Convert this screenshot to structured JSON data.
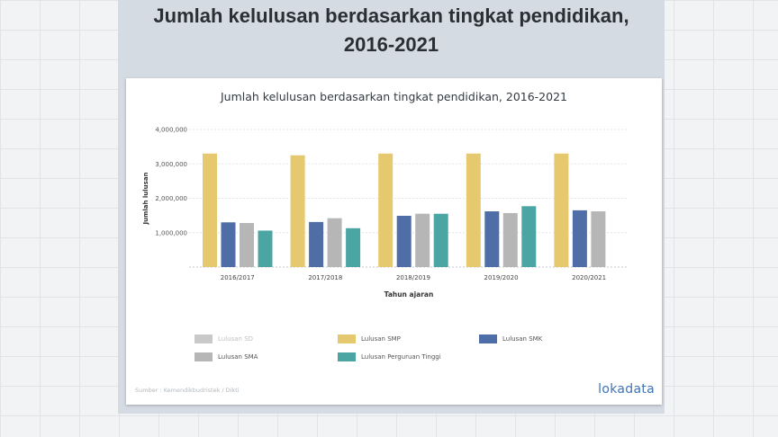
{
  "slide": {
    "title_line1": "Jumlah kelulusan berdasarkan tingkat pendidikan,",
    "title_line2": "2016-2021"
  },
  "chart_data": {
    "type": "bar",
    "title": "Jumlah kelulusan berdasarkan tingkat pendidikan, 2016-2021",
    "xlabel": "Tahun ajaran",
    "ylabel": "Jumlah lulusan",
    "ylim": [
      0,
      4000000
    ],
    "yticks": [
      1000000,
      2000000,
      3000000,
      4000000
    ],
    "ytick_labels": [
      "1,000,000",
      "2,000,000",
      "3,000,000",
      "4,000,000"
    ],
    "grid": "dashed horizontal",
    "legend_position": "bottom",
    "categories": [
      "2016/2017",
      "2017/2018",
      "2018/2019",
      "2019/2020",
      "2020/2021"
    ],
    "series": [
      {
        "name": "Lulusan SD",
        "color": "#c9c9c9",
        "values": [
          null,
          null,
          null,
          null,
          null
        ]
      },
      {
        "name": "Lulusan SMP",
        "color": "#e6c86e",
        "values": [
          3300000,
          3250000,
          3300000,
          3300000,
          3300000
        ]
      },
      {
        "name": "Lulusan SMK",
        "color": "#4f6da6",
        "values": [
          1300000,
          1310000,
          1490000,
          1620000,
          1650000
        ]
      },
      {
        "name": "Lulusan SMA",
        "color": "#b6b6b6",
        "values": [
          1280000,
          1420000,
          1550000,
          1570000,
          1620000
        ]
      },
      {
        "name": "Lulusan Perguruan Tinggi",
        "color": "#4ba5a2",
        "values": [
          1060000,
          1130000,
          1550000,
          1770000,
          null
        ]
      }
    ]
  },
  "footer": {
    "source": "Sumber : Kemendikbudristek / Dikti",
    "brand": "lokadata"
  }
}
